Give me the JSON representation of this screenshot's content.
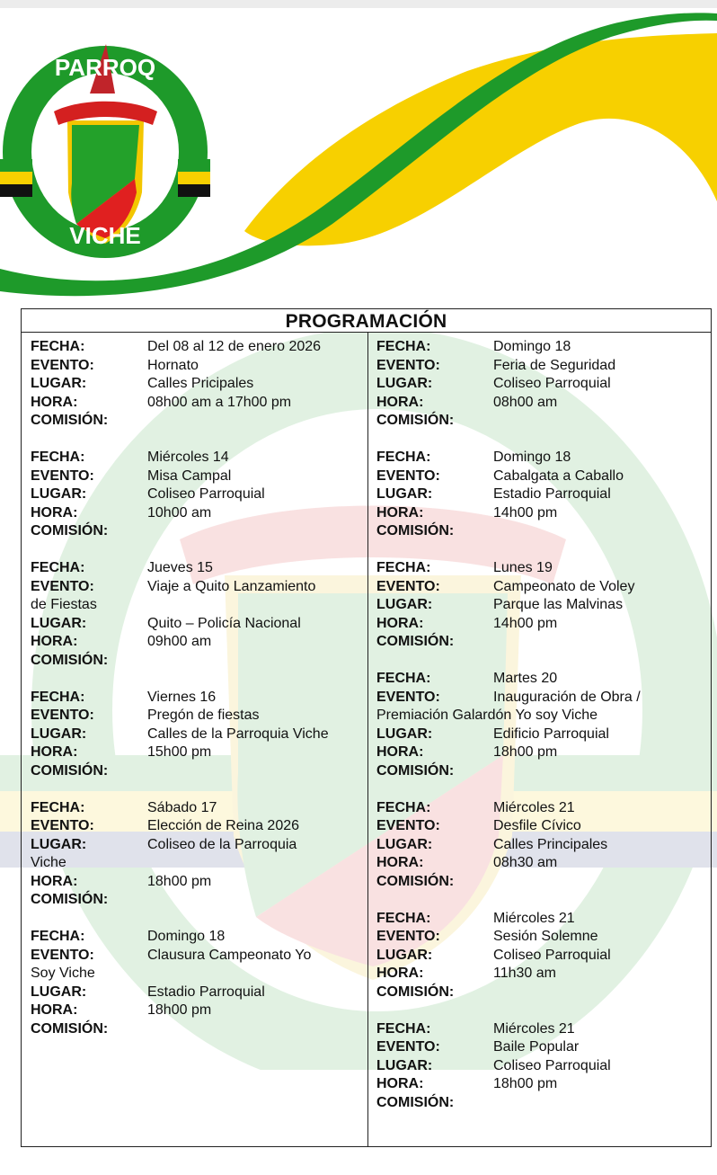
{
  "header": {
    "logo_text": "GAD PARROQUIAL VICHE",
    "colors": {
      "green": "#1e9a2a",
      "yellow": "#f7d000",
      "red": "#d42020"
    }
  },
  "table": {
    "title": "PROGRAMACIÓN",
    "labels": {
      "fecha": "FECHA:",
      "evento": "EVENTO:",
      "lugar": "LUGAR:",
      "hora": "HORA:",
      "comision": "COMISIÓN:"
    },
    "left": [
      {
        "fecha": "Del 08 al 12 de enero 2026",
        "evento": "Hornato",
        "lugar": "Calles Pricipales",
        "hora": "08h00 am a 17h00 pm",
        "comision": ""
      },
      {
        "fecha": "Miércoles 14",
        "evento": "Misa Campal",
        "lugar": "Coliseo Parroquial",
        "hora": "10h00 am",
        "comision": ""
      },
      {
        "fecha": "Jueves 15",
        "evento": "Viaje a Quito Lanzamiento",
        "evento_cont": "de Fiestas",
        "lugar": "Quito – Policía Nacional",
        "hora": "09h00 am",
        "comision": ""
      },
      {
        "fecha": "Viernes 16",
        "evento": "Pregón de fiestas",
        "lugar": "Calles de la Parroquia Viche",
        "hora": "15h00 pm",
        "comision": ""
      },
      {
        "fecha": "Sábado 17",
        "evento": "Elección de Reina 2026",
        "lugar": "Coliseo de la Parroquia",
        "lugar_cont": "Viche",
        "hora": "18h00 pm",
        "comision": ""
      },
      {
        "fecha": "Domingo 18",
        "evento": "Clausura Campeonato Yo",
        "evento_cont": "Soy Viche",
        "lugar": "Estadio Parroquial",
        "hora": "18h00 pm",
        "comision": ""
      }
    ],
    "right": [
      {
        "fecha": "Domingo 18",
        "evento": "Feria de Seguridad",
        "lugar": "Coliseo Parroquial",
        "hora": "08h00 am",
        "comision": ""
      },
      {
        "fecha": "Domingo 18",
        "evento": "Cabalgata a Caballo",
        "lugar": "Estadio Parroquial",
        "hora": "14h00 pm",
        "comision": ""
      },
      {
        "fecha": "Lunes 19",
        "evento": "Campeonato de Voley",
        "lugar": "Parque las Malvinas",
        "hora": "14h00 pm",
        "comision": ""
      },
      {
        "fecha": "Martes 20",
        "evento": "Inauguración de Obra /",
        "evento_cont": "Premiación Galardón Yo soy Viche",
        "lugar": "Edificio Parroquial",
        "hora": "18h00 pm",
        "comision": ""
      },
      {
        "fecha": "Miércoles 21",
        "evento": "Desfile Cívico",
        "lugar": "Calles Principales",
        "hora": "08h30 am",
        "comision": ""
      },
      {
        "fecha": "Miércoles 21",
        "evento": "Sesión Solemne",
        "lugar": "Coliseo Parroquial",
        "hora": "11h30 am",
        "comision": ""
      },
      {
        "fecha": "Miércoles 21",
        "evento": "Baile Popular",
        "lugar": "Coliseo Parroquial",
        "hora": "18h00 pm",
        "comision": ""
      }
    ]
  }
}
